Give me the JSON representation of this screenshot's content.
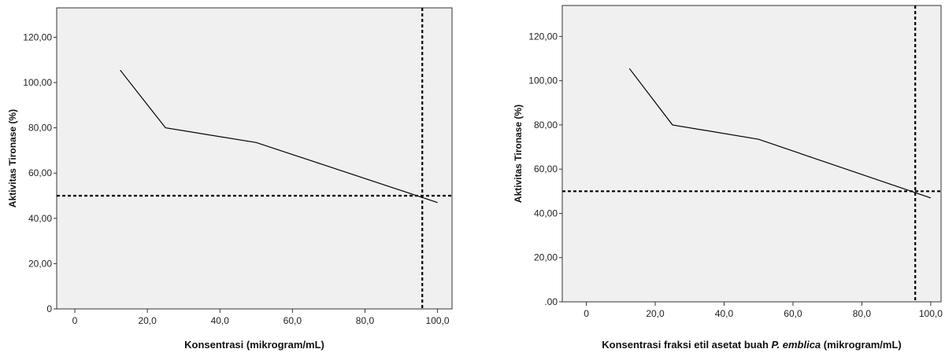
{
  "chart_data": [
    {
      "type": "line",
      "title": "",
      "xlabel": "Konsentrasi (mikrogram/mL)",
      "ylabel": "Aktivitas Tironase (%)",
      "xlim": [
        -5,
        104
      ],
      "ylim": [
        0,
        133
      ],
      "x_ticks": [
        0,
        20,
        40,
        60,
        80,
        100
      ],
      "x_tick_labels": [
        "0",
        "20,0",
        "40,0",
        "60,0",
        "80,0",
        "100,0"
      ],
      "y_ticks": [
        0,
        20,
        40,
        60,
        80,
        100,
        120
      ],
      "y_tick_labels": [
        "0",
        "20,00",
        "40,00",
        "60,00",
        "80,00",
        "100,00",
        "120,00"
      ],
      "series": [
        {
          "x": [
            12.5,
            25,
            50,
            100
          ],
          "y": [
            105.5,
            80,
            73.5,
            47
          ]
        }
      ],
      "reference_lines": {
        "horizontal_y": 50,
        "vertical_x": 95.8
      },
      "grid": false,
      "colors": {
        "plot_background": "#f0f0f0",
        "line": "#000000"
      }
    },
    {
      "type": "line",
      "title": "",
      "xlabel_parts": [
        "Konsentrasi fraksi etil asetat buah ",
        "P. emblica",
        " (mikrogram/mL)"
      ],
      "ylabel": "Aktivitas Tironase (%)",
      "xlim": [
        -7,
        103
      ],
      "ylim": [
        0,
        134
      ],
      "x_ticks": [
        0,
        20,
        40,
        60,
        80,
        100
      ],
      "x_tick_labels": [
        "0",
        "20,0",
        "40,0",
        "60,0",
        "80,0",
        "100,0"
      ],
      "y_ticks": [
        0,
        20,
        40,
        60,
        80,
        100,
        120
      ],
      "y_tick_labels": [
        ".00",
        "20,00",
        "40,00",
        "60,00",
        "80,00",
        "100,00",
        "120,00"
      ],
      "series": [
        {
          "x": [
            12.5,
            25,
            50,
            100
          ],
          "y": [
            105.5,
            80,
            73.5,
            47
          ]
        }
      ],
      "reference_lines": {
        "horizontal_y": 50,
        "vertical_x": 95.5
      },
      "grid": false,
      "colors": {
        "plot_background": "#f0f0f0",
        "line": "#000000"
      }
    }
  ]
}
